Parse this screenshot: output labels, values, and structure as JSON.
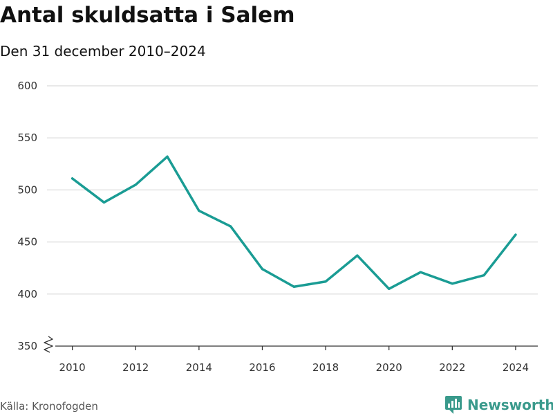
{
  "header": {
    "title": "Antal skuldsatta i Salem",
    "subtitle": "Den 31 december 2010–2024"
  },
  "footer": {
    "source": "Källa: Kronofogden",
    "brand": "Newsworthy"
  },
  "colors": {
    "line": "#1a9c94",
    "grid": "#d9d9d9",
    "axis": "#333333",
    "brand": "#3a9a8c"
  },
  "icons": {
    "brand": "bar-chart-logo-icon",
    "axis_break": "axis-break-icon"
  },
  "chart_data": {
    "type": "line",
    "title": "Antal skuldsatta i Salem",
    "subtitle": "Den 31 december 2010–2024",
    "xlabel": "",
    "ylabel": "",
    "x": [
      2010,
      2011,
      2012,
      2013,
      2014,
      2015,
      2016,
      2017,
      2018,
      2019,
      2020,
      2021,
      2022,
      2023,
      2024
    ],
    "series": [
      {
        "name": "Antal skuldsatta",
        "values": [
          511,
          488,
          505,
          532,
          480,
          465,
          424,
          407,
          412,
          437,
          405,
          421,
          410,
          418,
          457
        ]
      }
    ],
    "xlim": [
      2009.2,
      2024.7
    ],
    "ylim": [
      350,
      600
    ],
    "yticks": [
      350,
      400,
      450,
      500,
      550,
      600
    ],
    "xticks": [
      2010,
      2012,
      2014,
      2016,
      2018,
      2020,
      2022,
      2024
    ],
    "grid": true,
    "y_axis_break": true,
    "legend": "none"
  }
}
